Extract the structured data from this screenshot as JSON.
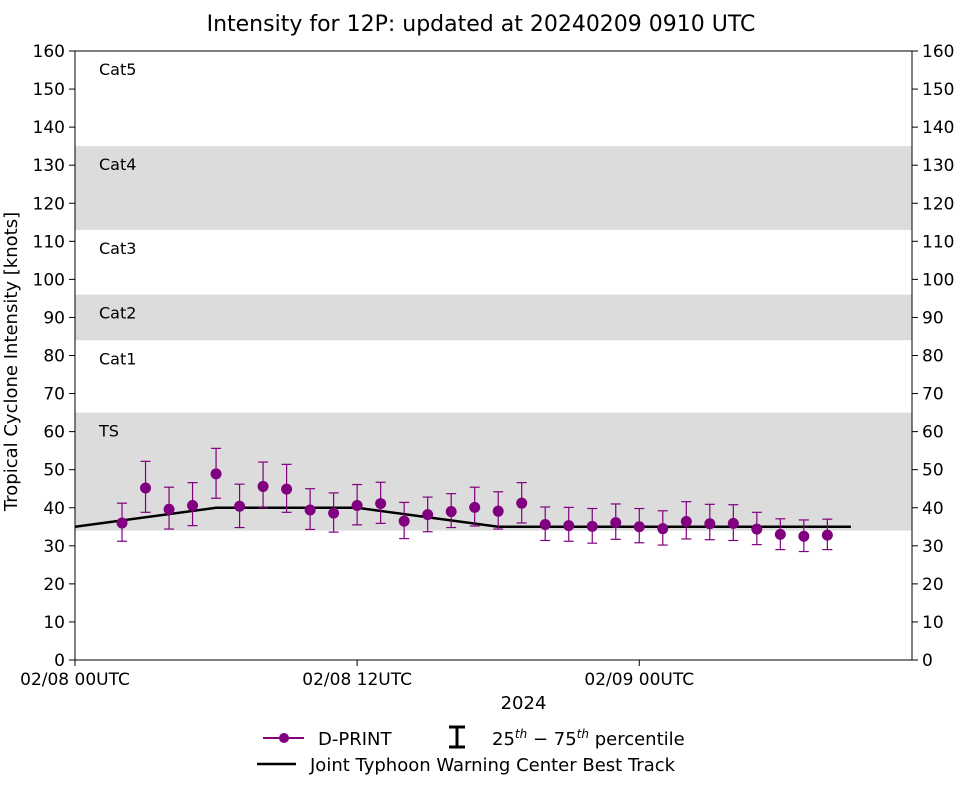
{
  "chart_data": {
    "type": "scatter",
    "title": "Intensity for 12P: updated at 20240209 0910 UTC",
    "xlabel": "2024",
    "ylabel": "Tropical Cyclone Intensity [knots]",
    "ylim": [
      0,
      160
    ],
    "y_ticks": [
      0,
      10,
      20,
      30,
      40,
      50,
      60,
      70,
      80,
      90,
      100,
      110,
      120,
      130,
      140,
      150,
      160
    ],
    "xlim": [
      "2024-02-08 00:00",
      "2024-02-09 11:36"
    ],
    "x_ticks": [
      {
        "time": "2024-02-08 00:00",
        "label": "02/08 00UTC"
      },
      {
        "time": "2024-02-08 12:00",
        "label": "02/08 12UTC"
      },
      {
        "time": "2024-02-09 00:00",
        "label": "02/09 00UTC"
      }
    ],
    "grid": false,
    "legend_position": "bottom",
    "category_bands": [
      {
        "label": "TS",
        "y0": 34,
        "y1": 65,
        "shaded": true
      },
      {
        "label": "Cat1",
        "y0": 65,
        "y1": 84,
        "shaded": false
      },
      {
        "label": "Cat2",
        "y0": 84,
        "y1": 96,
        "shaded": true
      },
      {
        "label": "Cat3",
        "y0": 96,
        "y1": 113,
        "shaded": false
      },
      {
        "label": "Cat4",
        "y0": 113,
        "y1": 135,
        "shaded": true
      },
      {
        "label": "Cat5",
        "y0": 135,
        "y1": 160,
        "shaded": false
      }
    ],
    "series": [
      {
        "name": "D-PRINT",
        "color": "#800080",
        "marker": "circle",
        "points": [
          {
            "x": "2024-02-08 02:00",
            "y": 36.0,
            "p25": 31.2,
            "p75": 41.2
          },
          {
            "x": "2024-02-08 03:00",
            "y": 45.2,
            "p25": 38.8,
            "p75": 52.2
          },
          {
            "x": "2024-02-08 04:00",
            "y": 39.6,
            "p25": 34.4,
            "p75": 45.4
          },
          {
            "x": "2024-02-08 05:00",
            "y": 40.6,
            "p25": 35.3,
            "p75": 46.6
          },
          {
            "x": "2024-02-08 06:00",
            "y": 48.9,
            "p25": 42.5,
            "p75": 55.6
          },
          {
            "x": "2024-02-08 07:00",
            "y": 40.4,
            "p25": 34.8,
            "p75": 46.2
          },
          {
            "x": "2024-02-08 08:00",
            "y": 45.6,
            "p25": 40.0,
            "p75": 52.0
          },
          {
            "x": "2024-02-08 09:00",
            "y": 44.9,
            "p25": 38.8,
            "p75": 51.4
          },
          {
            "x": "2024-02-08 10:00",
            "y": 39.4,
            "p25": 34.3,
            "p75": 45.0
          },
          {
            "x": "2024-02-08 11:00",
            "y": 38.6,
            "p25": 33.6,
            "p75": 43.9
          },
          {
            "x": "2024-02-08 12:00",
            "y": 40.6,
            "p25": 35.5,
            "p75": 46.1
          },
          {
            "x": "2024-02-08 13:00",
            "y": 41.1,
            "p25": 35.9,
            "p75": 46.7
          },
          {
            "x": "2024-02-08 14:00",
            "y": 36.5,
            "p25": 31.9,
            "p75": 41.4
          },
          {
            "x": "2024-02-08 15:00",
            "y": 38.2,
            "p25": 33.7,
            "p75": 42.8
          },
          {
            "x": "2024-02-08 16:00",
            "y": 39.0,
            "p25": 34.8,
            "p75": 43.7
          },
          {
            "x": "2024-02-08 17:00",
            "y": 40.1,
            "p25": 35.2,
            "p75": 45.4
          },
          {
            "x": "2024-02-08 18:00",
            "y": 39.1,
            "p25": 34.4,
            "p75": 44.2
          },
          {
            "x": "2024-02-08 19:00",
            "y": 41.2,
            "p25": 36.0,
            "p75": 46.6
          },
          {
            "x": "2024-02-08 20:00",
            "y": 35.6,
            "p25": 31.4,
            "p75": 40.2
          },
          {
            "x": "2024-02-08 21:00",
            "y": 35.3,
            "p25": 31.2,
            "p75": 40.1
          },
          {
            "x": "2024-02-08 22:00",
            "y": 35.1,
            "p25": 30.7,
            "p75": 39.8
          },
          {
            "x": "2024-02-08 23:00",
            "y": 36.1,
            "p25": 31.7,
            "p75": 41.0
          },
          {
            "x": "2024-02-09 00:00",
            "y": 35.0,
            "p25": 30.8,
            "p75": 39.8
          },
          {
            "x": "2024-02-09 01:00",
            "y": 34.5,
            "p25": 30.2,
            "p75": 39.2
          },
          {
            "x": "2024-02-09 02:00",
            "y": 36.4,
            "p25": 31.8,
            "p75": 41.6
          },
          {
            "x": "2024-02-09 03:00",
            "y": 35.8,
            "p25": 31.6,
            "p75": 40.9
          },
          {
            "x": "2024-02-09 04:00",
            "y": 35.9,
            "p25": 31.4,
            "p75": 40.8
          },
          {
            "x": "2024-02-09 05:00",
            "y": 34.4,
            "p25": 30.3,
            "p75": 38.8
          },
          {
            "x": "2024-02-09 06:00",
            "y": 33.0,
            "p25": 29.0,
            "p75": 37.1
          },
          {
            "x": "2024-02-09 07:00",
            "y": 32.5,
            "p25": 28.5,
            "p75": 36.8
          },
          {
            "x": "2024-02-09 08:00",
            "y": 32.8,
            "p25": 29.0,
            "p75": 37.0
          }
        ]
      },
      {
        "name": "Joint Typhoon Warning Center Best Track",
        "color": "#000000",
        "line_type": "line",
        "points": [
          {
            "x": "2024-02-08 00:00",
            "y": 35
          },
          {
            "x": "2024-02-08 06:00",
            "y": 40
          },
          {
            "x": "2024-02-08 12:00",
            "y": 40
          },
          {
            "x": "2024-02-08 18:00",
            "y": 35
          },
          {
            "x": "2024-02-09 00:00",
            "y": 35
          },
          {
            "x": "2024-02-09 06:00",
            "y": 35
          },
          {
            "x": "2024-02-09 09:00",
            "y": 35
          }
        ]
      }
    ],
    "legend": {
      "dprint_label": "D-PRINT",
      "percentile_label_base": "25",
      "percentile_label_sup1": "th",
      "percentile_label_mid": " − 75",
      "percentile_label_sup2": "th",
      "percentile_label_tail": " percentile",
      "besttrack_label": "Joint Typhoon Warning Center Best Track"
    }
  }
}
